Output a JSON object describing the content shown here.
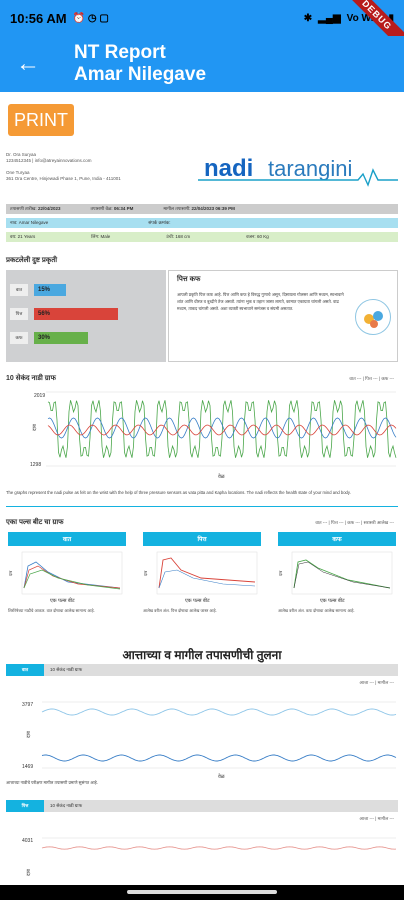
{
  "status": {
    "time": "10:56 AM",
    "right": "Vo WiFi",
    "debug": "DEBUG"
  },
  "appbar": {
    "title_line1": "NT Report",
    "title_line2": "Amar Nilegave"
  },
  "print_label": "PRINT",
  "header": {
    "doctor_name": "Dr. Ora Suryaa",
    "doctor_contact": "1234512345 | info@atreyainnovations.com",
    "clinic_name": "One Turyaa",
    "clinic_address": "361 Ora Centre, Hinjewadi Phase 1, Pune, India - 411001",
    "logo_nadi": "nadi",
    "logo_tarangini": "tarangini"
  },
  "info": {
    "date_label": "तपासणी तारीख:",
    "date_value": "22/04/2023",
    "time_label": "तपासणी वेळ:",
    "time_value": "06:34 PM",
    "prev_label": "मागील तपासणी:",
    "prev_value": "22/04/2023 06:39 PM",
    "name_label": "नाव:",
    "name_value": "Amar Nilegave",
    "phone_label": "संपर्क क्रमांक:",
    "age_label": "वय:",
    "age_value": "21 Years",
    "gender_label": "लिंग:",
    "gender_value": "Male",
    "height_label": "उंची:",
    "height_value": "168 cm",
    "weight_label": "वजन:",
    "weight_value": "60 Kg"
  },
  "prakruti": {
    "title": "प्रकटलेली दुष्ट प्रकृती",
    "rows": [
      {
        "label": "वात",
        "value": "15%",
        "color": "#4aa8e0"
      },
      {
        "label": "पित्त",
        "value": "56%",
        "color": "#d9443a"
      },
      {
        "label": "कफ",
        "value": "30%",
        "color": "#67b04a"
      }
    ],
    "desc_title": "पित्त कफ",
    "desc_text": "आपली प्रकृति पित्त कफ आहे. पित्त आणि कफ हे विरुद्ध गुणाचे असून, दिसायला गोलसर आणि मध्यम, स्वभावाने शांत आणि धीरज व बुध्दीने तेज असतो. त्यांना भूक व तहान जास्त लागते, कामात एकाग्रता चांगली असते. वाढ मध्यम, ताकद चांगली असते. अशा व्यक्ती स्वभावाने समंजस व संयमी असतात."
  },
  "wave10": {
    "title": "10 सेकंद नाडी ग्राफ",
    "legend": "वात --- | पित्त --- | कफ ---",
    "ymax": "2019",
    "ymin": "1298",
    "ylabel": "दाब",
    "xlabel": "वेळ",
    "note": "The graphs represent the nadi pulse as felt on the wrist with the help of three pressure sensors as vata pitta and Kapha locations. The nadi reflects the health state of your mind and body."
  },
  "beat": {
    "title": "एका पल्स बीट चा ग्राफ",
    "legend": "वात --- | पित्त --- | कफ --- | सरासरी आलेख ---",
    "panels": [
      {
        "head": "वात",
        "xlabel": "एक पल्स बीट",
        "text": "शिरोरेषेच्या नाडीचे आकार. वात दोषाचा आलेख सामान्य आहे."
      },
      {
        "head": "पित्त",
        "xlabel": "एक पल्स बीट",
        "text": "आलेख वरील अंश. पित्त दोषाचा आलेख जास्त आहे."
      },
      {
        "head": "कफ",
        "xlabel": "एक पल्स बीट",
        "text": "आलेख वरील अंश. कफ दोषाचा आलेख सामान्य आहे."
      }
    ]
  },
  "compare": {
    "title": "आत्ताच्या व मागील तपासणीची तुलना",
    "tab1": "वात",
    "tab1_sub": "10 सेकंद नाडी ग्राफ",
    "legend1": "आत्ता --- | मागील ---",
    "ymax1": "3797",
    "ymin1": "1469",
    "ylabel": "दाब",
    "xlabel": "वेळ",
    "note1": "आत्ताच्या नाडीचे परीक्षण मागील तपासणी प्रमाणे सुसंगत आहे.",
    "tab2": "पित्त",
    "tab2_sub": "10 सेकंद नाडी ग्राफ",
    "legend2": "आत्ता --- | मागील ---",
    "ymax2": "4031"
  },
  "colors": {
    "vata": "#3a7fc7",
    "pitta": "#d9443a",
    "kapha": "#4aa64a",
    "accent": "#2196f3",
    "print": "#f59a35"
  }
}
